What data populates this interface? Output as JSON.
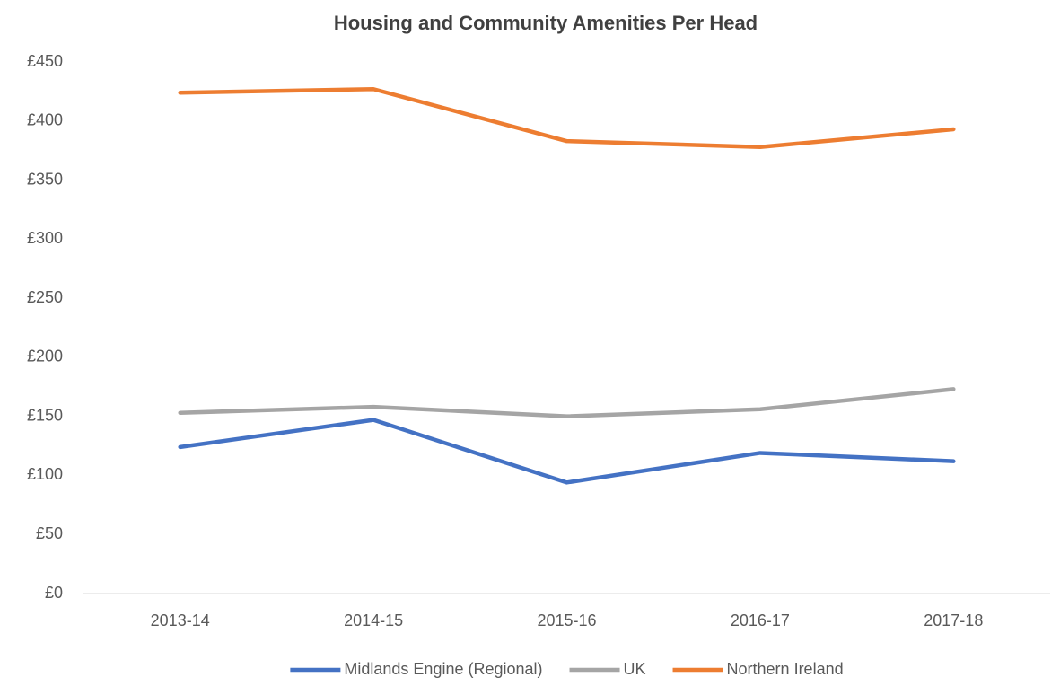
{
  "chart_data": {
    "type": "line",
    "title": "Housing and Community Amenities Per Head",
    "categories": [
      "2013-14",
      "2014-15",
      "2015-16",
      "2016-17",
      "2017-18"
    ],
    "series": [
      {
        "name": "Midlands Engine (Regional)",
        "color": "#4472c4",
        "values": [
          124,
          147,
          94,
          119,
          112
        ]
      },
      {
        "name": "UK",
        "color": "#a5a5a5",
        "values": [
          153,
          158,
          150,
          156,
          173
        ]
      },
      {
        "name": "Northern Ireland",
        "color": "#ed7d31",
        "values": [
          424,
          427,
          383,
          378,
          393
        ]
      }
    ],
    "ylim": [
      0,
      450
    ],
    "yticks": [
      {
        "value": 0,
        "label": "£0"
      },
      {
        "value": 50,
        "label": "£50"
      },
      {
        "value": 100,
        "label": "£100"
      },
      {
        "value": 150,
        "label": "£150"
      },
      {
        "value": 200,
        "label": "£200"
      },
      {
        "value": 250,
        "label": "£250"
      },
      {
        "value": 300,
        "label": "£300"
      },
      {
        "value": 350,
        "label": "£350"
      },
      {
        "value": 400,
        "label": "£400"
      },
      {
        "value": 450,
        "label": "£450"
      }
    ],
    "grid": false,
    "legend": "bottom"
  }
}
